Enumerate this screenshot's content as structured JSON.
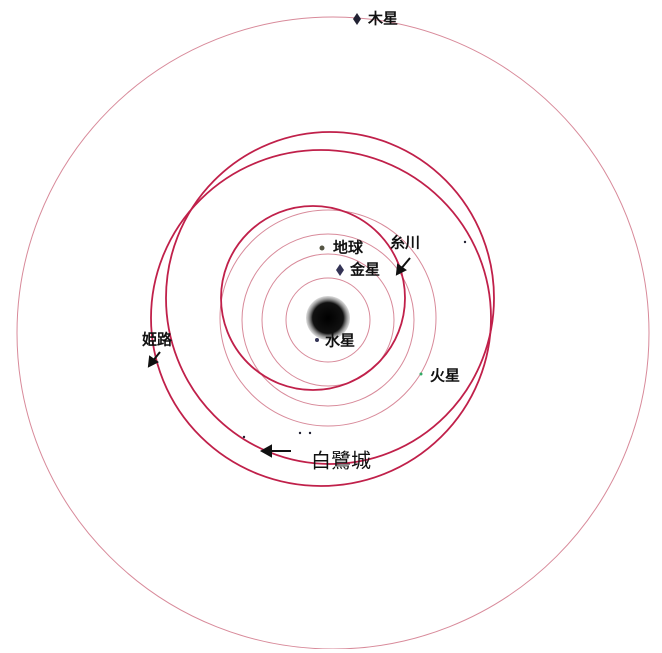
{
  "labels": {
    "jupiter": "木星",
    "earth": "地球",
    "itokawa": "糸川",
    "venus": "金星",
    "mercury": "水星",
    "mars": "火星",
    "himeji": "姫路",
    "hakuro": "白鷺城"
  }
}
